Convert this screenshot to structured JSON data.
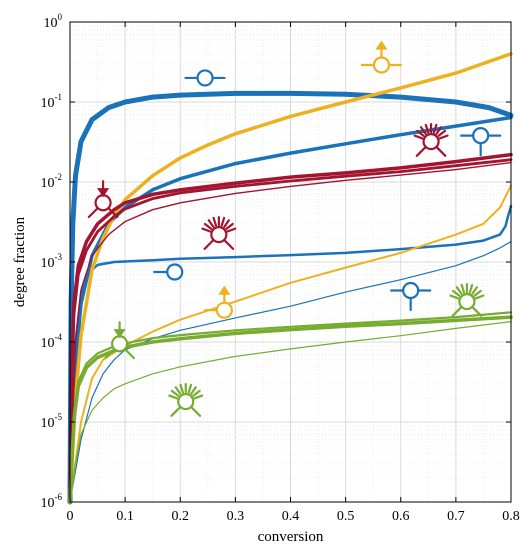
{
  "colors": {
    "blue": "#1a72bb",
    "gold": "#edb120",
    "red": "#a2142f",
    "green": "#77ac30"
  },
  "chart_data": {
    "type": "line",
    "title": "",
    "xlabel": "conversion",
    "ylabel": "degree fraction",
    "xlim": [
      0,
      0.8
    ],
    "ylim": [
      1e-06,
      1
    ],
    "yscale": "log",
    "grid": true,
    "legend": "none",
    "x_ticks": [
      "0",
      "0.1",
      "0.2",
      "0.3",
      "0.4",
      "0.5",
      "0.6",
      "0.7",
      "0.8"
    ],
    "y_ticks": [
      {
        "base": "10",
        "exp": "-6"
      },
      {
        "base": "10",
        "exp": "-5"
      },
      {
        "base": "10",
        "exp": "-4"
      },
      {
        "base": "10",
        "exp": "-3"
      },
      {
        "base": "10",
        "exp": "-2"
      },
      {
        "base": "10",
        "exp": "-1"
      },
      {
        "base": "10",
        "exp": "0"
      }
    ],
    "series": [
      {
        "color": "blue",
        "width": 5,
        "points": [
          [
            0.0,
            1e-06
          ],
          [
            0.002,
            0.0003
          ],
          [
            0.005,
            0.003
          ],
          [
            0.01,
            0.012
          ],
          [
            0.02,
            0.032
          ],
          [
            0.04,
            0.06
          ],
          [
            0.07,
            0.085
          ],
          [
            0.1,
            0.1
          ],
          [
            0.15,
            0.115
          ],
          [
            0.2,
            0.122
          ],
          [
            0.3,
            0.128
          ],
          [
            0.4,
            0.128
          ],
          [
            0.5,
            0.125
          ],
          [
            0.6,
            0.115
          ],
          [
            0.7,
            0.1
          ],
          [
            0.76,
            0.085
          ],
          [
            0.79,
            0.072
          ],
          [
            0.8,
            0.068
          ]
        ]
      },
      {
        "color": "blue",
        "width": 3.5,
        "points": [
          [
            0.0,
            1e-06
          ],
          [
            0.01,
            5e-05
          ],
          [
            0.02,
            0.0003
          ],
          [
            0.04,
            0.0012
          ],
          [
            0.07,
            0.003
          ],
          [
            0.1,
            0.0048
          ],
          [
            0.15,
            0.008
          ],
          [
            0.2,
            0.011
          ],
          [
            0.3,
            0.017
          ],
          [
            0.4,
            0.023
          ],
          [
            0.5,
            0.03
          ],
          [
            0.6,
            0.039
          ],
          [
            0.7,
            0.05
          ],
          [
            0.8,
            0.064
          ]
        ]
      },
      {
        "color": "blue",
        "width": 2.5,
        "points": [
          [
            0.0,
            1e-06
          ],
          [
            0.005,
            2.5e-05
          ],
          [
            0.01,
            0.0001
          ],
          [
            0.02,
            0.0004
          ],
          [
            0.03,
            0.0007
          ],
          [
            0.05,
            0.00092
          ],
          [
            0.08,
            0.001
          ],
          [
            0.15,
            0.00105
          ],
          [
            0.2,
            0.0011
          ],
          [
            0.3,
            0.00115
          ],
          [
            0.4,
            0.00122
          ],
          [
            0.5,
            0.0013
          ],
          [
            0.6,
            0.00145
          ],
          [
            0.7,
            0.00165
          ],
          [
            0.75,
            0.00185
          ],
          [
            0.78,
            0.0022
          ],
          [
            0.79,
            0.0028
          ],
          [
            0.795,
            0.0038
          ],
          [
            0.8,
            0.005
          ]
        ]
      },
      {
        "color": "blue",
        "width": 1.2,
        "points": [
          [
            0.0,
            1e-06
          ],
          [
            0.02,
            6e-06
          ],
          [
            0.04,
            2e-05
          ],
          [
            0.06,
            4e-05
          ],
          [
            0.08,
            6e-05
          ],
          [
            0.1,
            8e-05
          ],
          [
            0.15,
            0.00011
          ],
          [
            0.2,
            0.00014
          ],
          [
            0.3,
            0.0002
          ],
          [
            0.4,
            0.00028
          ],
          [
            0.5,
            0.00042
          ],
          [
            0.6,
            0.0006
          ],
          [
            0.7,
            0.0009
          ],
          [
            0.75,
            0.0012
          ],
          [
            0.78,
            0.0015
          ],
          [
            0.8,
            0.0018
          ]
        ]
      },
      {
        "color": "gold",
        "width": 3.5,
        "points": [
          [
            0.0,
            1e-06
          ],
          [
            0.01,
            2e-05
          ],
          [
            0.02,
            0.00012
          ],
          [
            0.04,
            0.0008
          ],
          [
            0.06,
            0.002
          ],
          [
            0.08,
            0.0038
          ],
          [
            0.1,
            0.006
          ],
          [
            0.15,
            0.012
          ],
          [
            0.2,
            0.02
          ],
          [
            0.25,
            0.029
          ],
          [
            0.3,
            0.04
          ],
          [
            0.4,
            0.066
          ],
          [
            0.5,
            0.1
          ],
          [
            0.6,
            0.15
          ],
          [
            0.7,
            0.23
          ],
          [
            0.8,
            0.4
          ]
        ]
      },
      {
        "color": "gold",
        "width": 2,
        "points": [
          [
            0.0,
            1e-06
          ],
          [
            0.02,
            1e-05
          ],
          [
            0.04,
            3.5e-05
          ],
          [
            0.06,
            6e-05
          ],
          [
            0.1,
            9e-05
          ],
          [
            0.15,
            0.000135
          ],
          [
            0.2,
            0.00019
          ],
          [
            0.3,
            0.00032
          ],
          [
            0.4,
            0.00055
          ],
          [
            0.5,
            0.00085
          ],
          [
            0.6,
            0.0013
          ],
          [
            0.7,
            0.0022
          ],
          [
            0.75,
            0.003
          ],
          [
            0.78,
            0.0048
          ],
          [
            0.8,
            0.009
          ]
        ]
      },
      {
        "color": "red",
        "width": 3.5,
        "points": [
          [
            0.0,
            1e-06
          ],
          [
            0.003,
            4e-05
          ],
          [
            0.007,
            0.0003
          ],
          [
            0.015,
            0.0009
          ],
          [
            0.03,
            0.0018
          ],
          [
            0.05,
            0.003
          ],
          [
            0.08,
            0.0045
          ],
          [
            0.1,
            0.0055
          ],
          [
            0.15,
            0.007
          ],
          [
            0.2,
            0.008
          ],
          [
            0.3,
            0.0097
          ],
          [
            0.4,
            0.0115
          ],
          [
            0.5,
            0.013
          ],
          [
            0.6,
            0.015
          ],
          [
            0.7,
            0.018
          ],
          [
            0.8,
            0.022
          ]
        ]
      },
      {
        "color": "red",
        "width": 2.8,
        "points": [
          [
            0.0,
            1e-06
          ],
          [
            0.003,
            3e-05
          ],
          [
            0.007,
            0.00022
          ],
          [
            0.015,
            0.0007
          ],
          [
            0.03,
            0.0014
          ],
          [
            0.05,
            0.0024
          ],
          [
            0.08,
            0.0037
          ],
          [
            0.1,
            0.0046
          ],
          [
            0.15,
            0.0062
          ],
          [
            0.2,
            0.0073
          ],
          [
            0.3,
            0.0088
          ],
          [
            0.4,
            0.0103
          ],
          [
            0.5,
            0.0118
          ],
          [
            0.6,
            0.0135
          ],
          [
            0.7,
            0.016
          ],
          [
            0.8,
            0.019
          ]
        ]
      },
      {
        "color": "red",
        "width": 1.4,
        "points": [
          [
            0.0,
            1e-06
          ],
          [
            0.01,
            0.0001
          ],
          [
            0.02,
            0.00045
          ],
          [
            0.04,
            0.0012
          ],
          [
            0.07,
            0.0022
          ],
          [
            0.1,
            0.0032
          ],
          [
            0.15,
            0.0045
          ],
          [
            0.2,
            0.0055
          ],
          [
            0.3,
            0.0072
          ],
          [
            0.4,
            0.0088
          ],
          [
            0.5,
            0.0105
          ],
          [
            0.6,
            0.0122
          ],
          [
            0.7,
            0.0143
          ],
          [
            0.8,
            0.0175
          ]
        ]
      },
      {
        "color": "green",
        "width": 3.5,
        "points": [
          [
            0.0,
            1e-06
          ],
          [
            0.004,
            4e-06
          ],
          [
            0.008,
            1.2e-05
          ],
          [
            0.015,
            2.8e-05
          ],
          [
            0.03,
            4.8e-05
          ],
          [
            0.05,
            6.4e-05
          ],
          [
            0.08,
            7.8e-05
          ],
          [
            0.1,
            8.6e-05
          ],
          [
            0.15,
            0.0001
          ],
          [
            0.2,
            0.00011
          ],
          [
            0.3,
            0.000128
          ],
          [
            0.4,
            0.000143
          ],
          [
            0.5,
            0.000157
          ],
          [
            0.6,
            0.00017
          ],
          [
            0.7,
            0.000186
          ],
          [
            0.8,
            0.000205
          ]
        ]
      },
      {
        "color": "green",
        "width": 2.2,
        "points": [
          [
            0.0,
            1e-06
          ],
          [
            0.004,
            5e-06
          ],
          [
            0.008,
            1.4e-05
          ],
          [
            0.015,
            3.2e-05
          ],
          [
            0.03,
            5.4e-05
          ],
          [
            0.05,
            7.2e-05
          ],
          [
            0.08,
            8.8e-05
          ],
          [
            0.1,
            9.6e-05
          ],
          [
            0.15,
            0.000112
          ],
          [
            0.2,
            0.000122
          ],
          [
            0.3,
            0.00014
          ],
          [
            0.4,
            0.000155
          ],
          [
            0.5,
            0.00017
          ],
          [
            0.6,
            0.000185
          ],
          [
            0.7,
            0.000205
          ],
          [
            0.8,
            0.000235
          ]
        ]
      },
      {
        "color": "green",
        "width": 1.2,
        "points": [
          [
            0.0,
            1e-06
          ],
          [
            0.01,
            3e-06
          ],
          [
            0.02,
            7e-06
          ],
          [
            0.04,
            1.4e-05
          ],
          [
            0.06,
            2e-05
          ],
          [
            0.08,
            2.6e-05
          ],
          [
            0.1,
            3e-05
          ],
          [
            0.15,
            4e-05
          ],
          [
            0.2,
            4.9e-05
          ],
          [
            0.3,
            6.6e-05
          ],
          [
            0.4,
            8.2e-05
          ],
          [
            0.5,
            0.0001
          ],
          [
            0.6,
            0.00012
          ],
          [
            0.7,
            0.000148
          ],
          [
            0.8,
            0.00018
          ]
        ]
      }
    ],
    "glyphs": [
      {
        "color": "blue",
        "x": 0.245,
        "y": 0.2,
        "kind": "double-arm-h"
      },
      {
        "color": "blue",
        "x": 0.745,
        "y": 0.038,
        "kind": "arm-v-arm-h"
      },
      {
        "color": "blue",
        "x": 0.19,
        "y": 0.00075,
        "kind": "arm-left"
      },
      {
        "color": "blue",
        "x": 0.618,
        "y": 0.00044,
        "kind": "arm-v-arm-h"
      },
      {
        "color": "gold",
        "x": 0.565,
        "y": 0.29,
        "kind": "arrow-up-double-arm"
      },
      {
        "color": "gold",
        "x": 0.28,
        "y": 0.00025,
        "kind": "arrow-up-single-arm"
      },
      {
        "color": "red",
        "x": 0.06,
        "y": 0.0055,
        "kind": "arrow-down-tripod"
      },
      {
        "color": "red",
        "x": 0.655,
        "y": 0.032,
        "kind": "burst-tripod"
      },
      {
        "color": "red",
        "x": 0.27,
        "y": 0.0022,
        "kind": "burst-tripod"
      },
      {
        "color": "green",
        "x": 0.09,
        "y": 9.5e-05,
        "kind": "arrow-down-tripod"
      },
      {
        "color": "green",
        "x": 0.21,
        "y": 1.8e-05,
        "kind": "burst-tripod"
      },
      {
        "color": "green",
        "x": 0.72,
        "y": 0.00032,
        "kind": "burst-tripod"
      }
    ]
  }
}
